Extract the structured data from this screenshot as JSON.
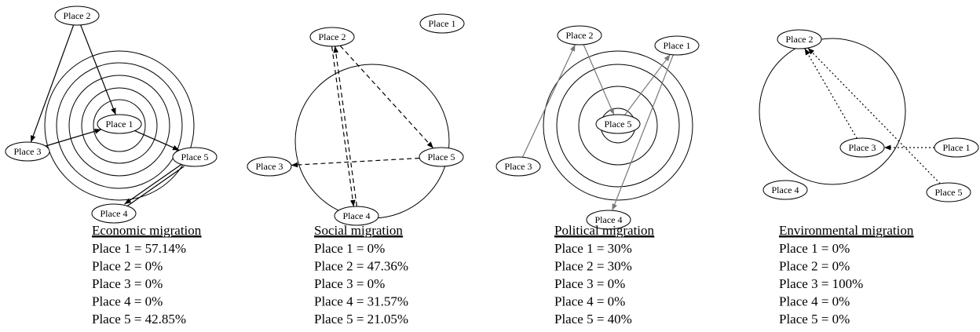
{
  "panels": [
    {
      "title": "Economic migration",
      "nodes": [
        "Place 1",
        "Place 2",
        "Place 3",
        "Place 4",
        "Place 5"
      ],
      "lines": [
        "Place 1 = 57.14%",
        "Place 2 = 0%",
        "Place 3 = 0%",
        "Place 4 = 0%",
        "Place 5 = 42.85%"
      ]
    },
    {
      "title": "Social migration",
      "nodes": [
        "Place 1",
        "Place 2",
        "Place 3",
        "Place 4",
        "Place 5"
      ],
      "lines": [
        "Place 1 = 0%",
        "Place 2 = 47.36%",
        "Place 3 = 0%",
        "Place 4 = 31.57%",
        "Place 5 = 21.05%"
      ]
    },
    {
      "title": "Political migration",
      "nodes": [
        "Place 1",
        "Place 2",
        "Place 3",
        "Place 4",
        "Place 5"
      ],
      "lines": [
        "Place 1 = 30%",
        "Place 2 = 30%",
        "Place 3 = 0%",
        "Place 4 = 0%",
        "Place 5 = 40%"
      ]
    },
    {
      "title": "Environmental migration",
      "nodes": [
        "Place 1",
        "Place 2",
        "Place 3",
        "Place 4",
        "Place 5"
      ],
      "lines": [
        "Place 1 = 0%",
        "Place 2 = 0%",
        "Place 3 = 100%",
        "Place 4 = 0%",
        "Place 5 = 0%"
      ]
    }
  ]
}
